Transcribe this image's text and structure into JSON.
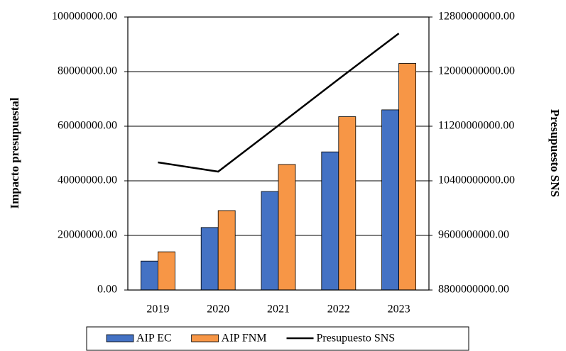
{
  "chart_data": {
    "type": "bar_line",
    "y_label": "Impacto presupuestal",
    "y2_label": "Presupuesto SNS",
    "categories": [
      "2019",
      "2020",
      "2021",
      "2022",
      "2023"
    ],
    "series": [
      {
        "name": "AIP EC",
        "color": "#4472c4",
        "type": "bar",
        "values": [
          10600000,
          22900000,
          36100000,
          50600000,
          66000000
        ]
      },
      {
        "name": "AIP FNM",
        "color": "#f79646",
        "type": "bar",
        "values": [
          14000000,
          29100000,
          46000000,
          63500000,
          83000000
        ]
      },
      {
        "name": "Presupuesto SNS",
        "color": "#000000",
        "type": "line",
        "axis": "y2",
        "values": [
          10670000000,
          10535000000,
          11210000000,
          11890000000,
          12560000000
        ]
      }
    ],
    "ylim": [
      0,
      100000000
    ],
    "yticks": [
      {
        "value": 0,
        "label": "0.00"
      },
      {
        "value": 20000000,
        "label": "20000000.00"
      },
      {
        "value": 40000000,
        "label": "40000000.00"
      },
      {
        "value": 60000000,
        "label": "60000000.00"
      },
      {
        "value": 80000000,
        "label": "80000000.00"
      },
      {
        "value": 100000000,
        "label": "100000000.00"
      }
    ],
    "y2lim": [
      8800000000,
      12800000000
    ],
    "y2ticks": [
      {
        "value": 8800000000,
        "label": "8800000000.00"
      },
      {
        "value": 9600000000,
        "label": "9600000000.00"
      },
      {
        "value": 10400000000,
        "label": "10400000000.00"
      },
      {
        "value": 11200000000,
        "label": "11200000000.00"
      },
      {
        "value": 12000000000,
        "label": "12000000000.00"
      },
      {
        "value": 12800000000,
        "label": "12800000000.00"
      }
    ],
    "grid": true,
    "legend": "bottom"
  }
}
